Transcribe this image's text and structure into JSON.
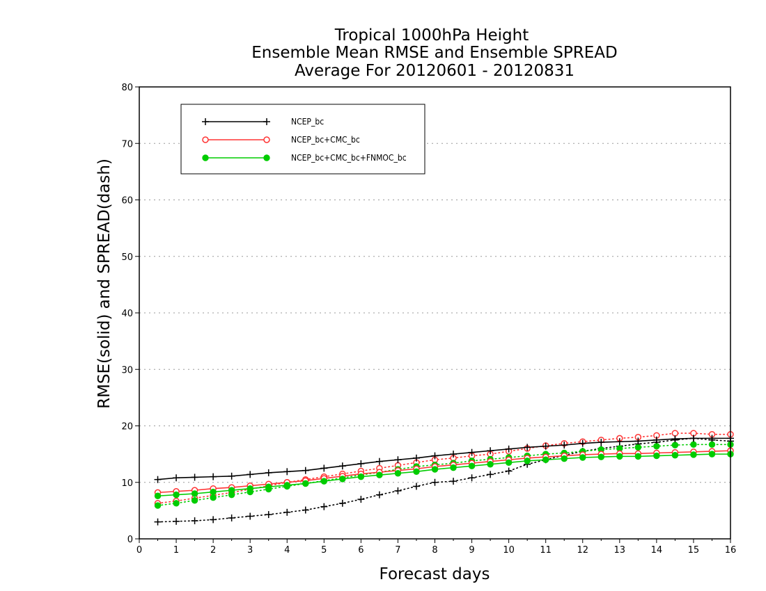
{
  "chart_data": {
    "type": "line",
    "title": [
      "Tropical 1000hPa Height",
      "Ensemble Mean RMSE and Ensemble SPREAD",
      "Average For 20120601 - 20120831"
    ],
    "xlabel": "Forecast days",
    "ylabel": "RMSE(solid) and SPREAD(dash)",
    "xlim": [
      0,
      16
    ],
    "ylim": [
      0,
      80
    ],
    "xticks": [
      0,
      1,
      2,
      3,
      4,
      5,
      6,
      7,
      8,
      9,
      10,
      11,
      12,
      13,
      14,
      15,
      16
    ],
    "yticks": [
      0,
      10,
      20,
      30,
      40,
      50,
      60,
      70,
      80
    ],
    "grid": "horizontal dotted",
    "legend_position": "top-left",
    "x": [
      0.5,
      1,
      1.5,
      2,
      2.5,
      3,
      3.5,
      4,
      4.5,
      5,
      5.5,
      6,
      6.5,
      7,
      7.5,
      8,
      8.5,
      9,
      9.5,
      10,
      10.5,
      11,
      11.5,
      12,
      12.5,
      13,
      13.5,
      14,
      14.5,
      15,
      15.5,
      16
    ],
    "series": [
      {
        "name": "NCEP_bc",
        "color": "#000000",
        "marker": "plus",
        "rmse": [
          10.5,
          10.8,
          10.9,
          11.0,
          11.1,
          11.4,
          11.7,
          11.9,
          12.1,
          12.5,
          12.9,
          13.3,
          13.7,
          14.0,
          14.3,
          14.7,
          15.0,
          15.3,
          15.6,
          15.9,
          16.2,
          16.4,
          16.6,
          16.9,
          17.1,
          17.2,
          17.3,
          17.5,
          17.7,
          17.8,
          17.8,
          17.8
        ],
        "spread": [
          3.0,
          3.1,
          3.2,
          3.4,
          3.7,
          4.0,
          4.3,
          4.7,
          5.1,
          5.7,
          6.3,
          7.0,
          7.8,
          8.5,
          9.3,
          10.0,
          10.2,
          10.8,
          11.4,
          12.0,
          13.2,
          14.0,
          14.8,
          15.5,
          16.0,
          16.4,
          16.8,
          17.1,
          17.5,
          17.8,
          17.5,
          17.3
        ]
      },
      {
        "name": "NCEP_bc+CMC_bc",
        "color": "#ff3333",
        "marker": "open-circle",
        "rmse": [
          8.2,
          8.4,
          8.6,
          8.9,
          9.1,
          9.4,
          9.7,
          10.0,
          10.3,
          10.7,
          11.1,
          11.5,
          11.8,
          12.1,
          12.4,
          12.8,
          13.1,
          13.4,
          13.7,
          14.0,
          14.3,
          14.5,
          14.7,
          14.9,
          15.0,
          15.1,
          15.1,
          15.2,
          15.3,
          15.4,
          15.5,
          15.6
        ],
        "spread": [
          6.3,
          6.7,
          7.2,
          7.7,
          8.2,
          8.8,
          9.4,
          10.0,
          10.5,
          11.0,
          11.5,
          12.0,
          12.5,
          13.0,
          13.5,
          14.0,
          14.3,
          14.7,
          15.0,
          15.5,
          16.0,
          16.5,
          16.9,
          17.2,
          17.5,
          17.8,
          18.0,
          18.3,
          18.7,
          18.7,
          18.5,
          18.5
        ]
      },
      {
        "name": "NCEP_bc+CMC_bc+FNMOC_bc",
        "color": "#00cc00",
        "marker": "filled-circle",
        "rmse": [
          7.6,
          7.8,
          8.0,
          8.3,
          8.6,
          8.9,
          9.2,
          9.5,
          9.8,
          10.2,
          10.6,
          11.0,
          11.3,
          11.6,
          11.9,
          12.3,
          12.6,
          12.9,
          13.2,
          13.5,
          13.8,
          14.0,
          14.2,
          14.4,
          14.5,
          14.6,
          14.6,
          14.7,
          14.8,
          14.9,
          15.0,
          15.0
        ],
        "spread": [
          5.9,
          6.3,
          6.8,
          7.3,
          7.8,
          8.3,
          8.8,
          9.3,
          9.8,
          10.3,
          10.8,
          11.3,
          11.8,
          12.3,
          12.8,
          13.1,
          13.4,
          13.8,
          14.1,
          14.4,
          14.7,
          15.0,
          15.2,
          15.5,
          15.8,
          16.0,
          16.2,
          16.4,
          16.6,
          16.7,
          16.7,
          16.7
        ]
      }
    ]
  }
}
